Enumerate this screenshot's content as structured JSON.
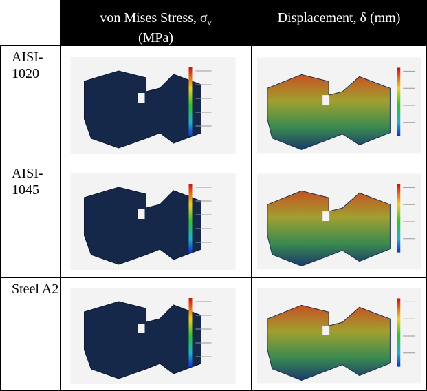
{
  "table": {
    "header": [
      {
        "text": "von Mises Stress, σ",
        "subscript": "v",
        "line2": "(MPa)"
      },
      {
        "text": "Displacement, δ (mm)"
      }
    ],
    "rows": [
      "AISI-1020",
      "AISI-1045",
      "Steel A2"
    ]
  }
}
